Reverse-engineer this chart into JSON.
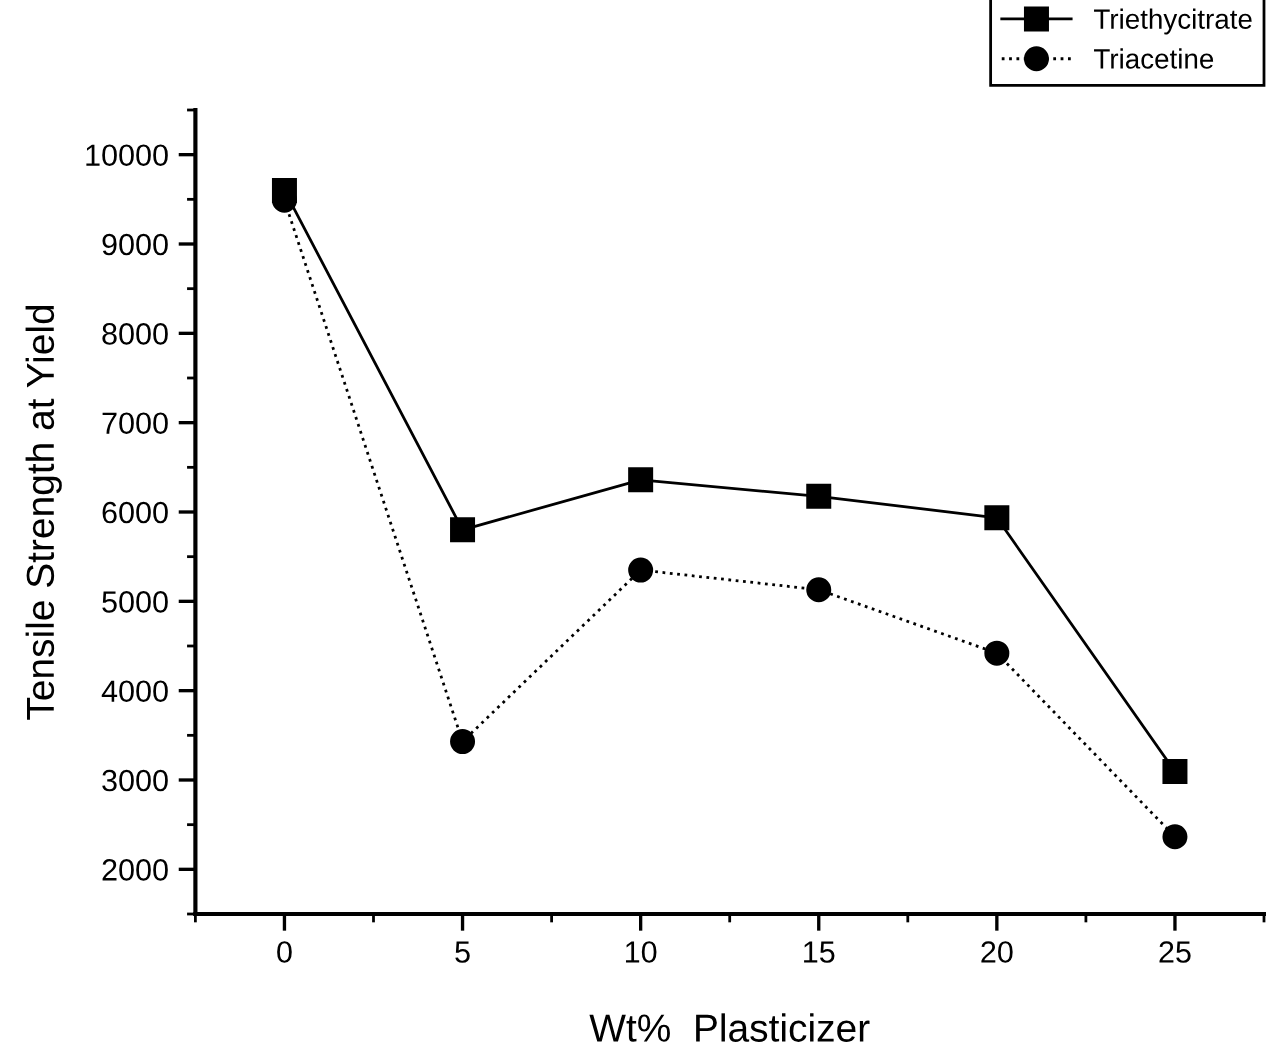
{
  "chart_data": {
    "type": "line",
    "xlabel": "Wt%  Plasticizer",
    "ylabel": "Tensile Strength at Yield",
    "x": [
      0,
      5,
      10,
      15,
      20,
      25
    ],
    "series": [
      {
        "name": "Triethycitrate",
        "color": "#000000",
        "marker": "square",
        "line_style": "solid",
        "values": [
          9600,
          5800,
          6360,
          6175,
          5935,
          3095
        ]
      },
      {
        "name": "Triacetine",
        "color": "#000000",
        "marker": "circle",
        "line_style": "dotted",
        "values": [
          9490,
          3430,
          5350,
          5130,
          4420,
          2365
        ]
      }
    ],
    "xlim": [
      -2.5,
      27.5
    ],
    "xticks": [
      0,
      5,
      10,
      15,
      20,
      25
    ],
    "ylim": [
      1500,
      10500
    ],
    "yticks": [
      2000,
      3000,
      4000,
      5000,
      6000,
      7000,
      8000,
      9000,
      10000
    ],
    "grid": false,
    "legend": "top right"
  }
}
